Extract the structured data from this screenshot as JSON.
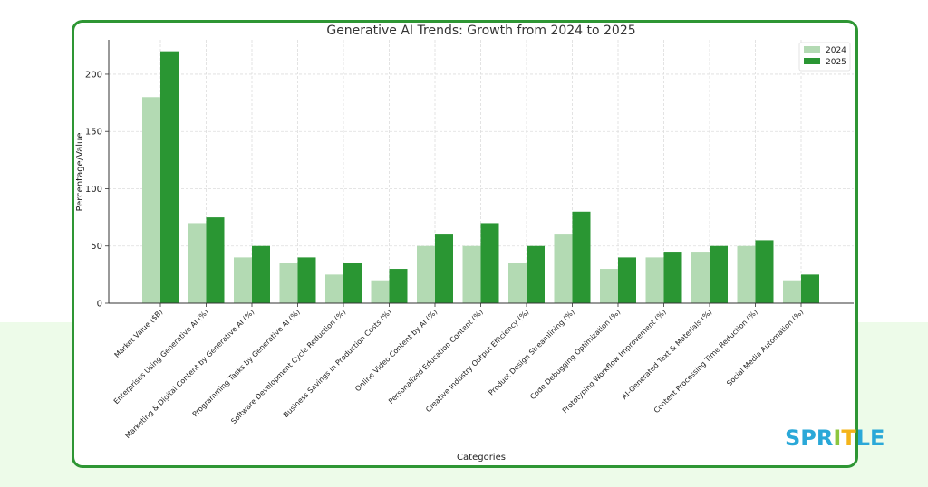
{
  "chart_data": {
    "type": "bar",
    "title": "Generative AI Trends: Growth from 2024 to 2025",
    "xlabel": "Categories",
    "ylabel": "Percentage/Value",
    "ylim": [
      0,
      230
    ],
    "yticks": [
      0,
      50,
      100,
      150,
      200
    ],
    "grid": true,
    "legend": "top-right",
    "categories": [
      "Market Value ($B)",
      "Enterprises Using Generative AI (%)",
      "Marketing & Digital Content by Generative AI (%)",
      "Programming Tasks by Generative AI (%)",
      "Software Development Cycle Reduction (%)",
      "Business Savings in Production Costs (%)",
      "Online Video Content by AI (%)",
      "Personalized Education Content (%)",
      "Creative Industry Output Efficiency (%)",
      "Product Design Streamlining (%)",
      "Code Debugging Optimization (%)",
      "Prototyping Workflow Improvement (%)",
      "AI-Generated Text & Materials (%)",
      "Content Processing Time Reduction (%)",
      "Social Media Automation (%)"
    ],
    "series": [
      {
        "name": "2024",
        "color": "#b3dab3",
        "values": [
          180,
          70,
          40,
          35,
          25,
          20,
          50,
          50,
          35,
          60,
          30,
          40,
          45,
          50,
          20
        ]
      },
      {
        "name": "2025",
        "color": "#2a9633",
        "values": [
          220,
          75,
          50,
          40,
          35,
          30,
          60,
          70,
          50,
          80,
          40,
          45,
          50,
          55,
          25
        ]
      }
    ]
  },
  "logo": {
    "text": "SPRITLE",
    "letters": [
      {
        "ch": "S",
        "color": "#2aa8d8"
      },
      {
        "ch": "P",
        "color": "#2aa8d8"
      },
      {
        "ch": "R",
        "color": "#2aa8d8"
      },
      {
        "ch": "I",
        "color": "#8cc63f"
      },
      {
        "ch": "T",
        "color": "#f4b41a"
      },
      {
        "ch": "L",
        "color": "#2aa8d8"
      },
      {
        "ch": "E",
        "color": "#2aa8d8"
      }
    ]
  },
  "colors": {
    "frame": "#2e9634",
    "background_band": "#edfbe9"
  }
}
